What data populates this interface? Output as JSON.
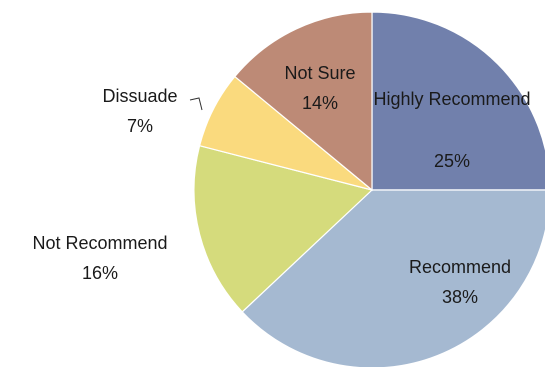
{
  "chart_data": {
    "type": "pie",
    "title": "",
    "start_angle_deg": 0,
    "direction": "clockwise",
    "slices": [
      {
        "label": "Highly Recommend",
        "value": 25,
        "pct_label": "25%",
        "color": "#7180AC"
      },
      {
        "label": "Recommend",
        "value": 38,
        "pct_label": "38%",
        "color": "#A5B9D1"
      },
      {
        "label": "Not Recommend",
        "value": 16,
        "pct_label": "16%",
        "color": "#D5DB7C"
      },
      {
        "label": "Dissuade",
        "value": 7,
        "pct_label": "7%",
        "color": "#FADA7E"
      },
      {
        "label": "Not Sure",
        "value": 14,
        "pct_label": "14%",
        "color": "#BD8A76"
      }
    ]
  }
}
